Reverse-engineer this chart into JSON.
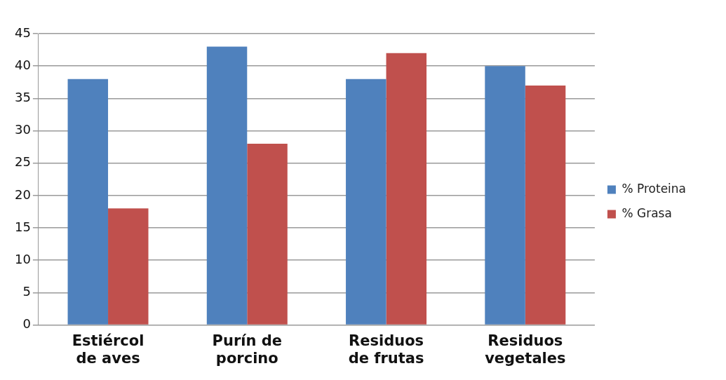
{
  "chart_data": {
    "type": "bar",
    "categories": [
      "Estiércol de aves",
      "Purín de porcino",
      "Residuos de frutas",
      "Residuos vegetales"
    ],
    "series": [
      {
        "name": "% Proteina",
        "color": "#4f81bd",
        "values": [
          38,
          43,
          38,
          40
        ]
      },
      {
        "name": "% Grasa",
        "color": "#c0504d",
        "values": [
          18,
          28,
          42,
          37
        ]
      }
    ],
    "ylim": [
      0,
      45
    ],
    "yticks": [
      0,
      5,
      10,
      15,
      20,
      25,
      30,
      35,
      40,
      45
    ],
    "grid": "y",
    "legend": "right"
  }
}
